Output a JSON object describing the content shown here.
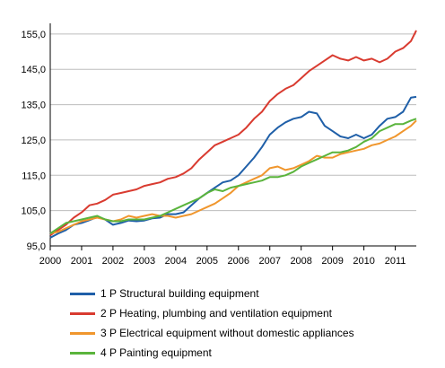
{
  "chart_data": {
    "type": "line",
    "title": "",
    "xlabel": "",
    "ylabel": "",
    "ylim": [
      95,
      157
    ],
    "y_ticks": [
      "155,0",
      "145,0",
      "135,0",
      "125,0",
      "115,0",
      "105,0",
      "95,0"
    ],
    "y_tick_values": [
      155,
      145,
      135,
      125,
      115,
      105,
      95
    ],
    "xlim": [
      2000.0,
      2011.67
    ],
    "x_ticks": [
      "2000",
      "2001",
      "2002",
      "2003",
      "2004",
      "2005",
      "2006",
      "2007",
      "2008",
      "2009",
      "2010",
      "2011"
    ],
    "x_tick_values": [
      2000,
      2001,
      2002,
      2003,
      2004,
      2005,
      2006,
      2007,
      2008,
      2009,
      2010,
      2011
    ],
    "grid": "horizontal",
    "legend_position": "bottom",
    "series": [
      {
        "name": "1 P Structural building equipment",
        "color": "#1f5fa8",
        "points": [
          [
            2000.0,
            97.3
          ],
          [
            2000.25,
            98.5
          ],
          [
            2000.5,
            99.5
          ],
          [
            2000.75,
            101.0
          ],
          [
            2001.0,
            101.5
          ],
          [
            2001.25,
            102.3
          ],
          [
            2001.5,
            103.2
          ],
          [
            2001.75,
            102.5
          ],
          [
            2002.0,
            101.0
          ],
          [
            2002.25,
            101.5
          ],
          [
            2002.5,
            102.2
          ],
          [
            2002.75,
            102.0
          ],
          [
            2003.0,
            102.2
          ],
          [
            2003.25,
            102.8
          ],
          [
            2003.5,
            103.0
          ],
          [
            2003.75,
            104.0
          ],
          [
            2004.0,
            104.0
          ],
          [
            2004.25,
            104.5
          ],
          [
            2004.5,
            106.5
          ],
          [
            2004.75,
            108.5
          ],
          [
            2005.0,
            110.0
          ],
          [
            2005.25,
            111.5
          ],
          [
            2005.5,
            113.0
          ],
          [
            2005.75,
            113.5
          ],
          [
            2006.0,
            115.0
          ],
          [
            2006.25,
            117.5
          ],
          [
            2006.5,
            120.0
          ],
          [
            2006.75,
            123.0
          ],
          [
            2007.0,
            126.5
          ],
          [
            2007.25,
            128.5
          ],
          [
            2007.5,
            130.0
          ],
          [
            2007.75,
            131.0
          ],
          [
            2008.0,
            131.5
          ],
          [
            2008.25,
            133.0
          ],
          [
            2008.5,
            132.5
          ],
          [
            2008.75,
            129.0
          ],
          [
            2009.0,
            127.5
          ],
          [
            2009.25,
            126.0
          ],
          [
            2009.5,
            125.5
          ],
          [
            2009.75,
            126.5
          ],
          [
            2010.0,
            125.5
          ],
          [
            2010.25,
            126.5
          ],
          [
            2010.5,
            129.0
          ],
          [
            2010.75,
            131.0
          ],
          [
            2011.0,
            131.5
          ],
          [
            2011.25,
            133.0
          ],
          [
            2011.5,
            137.0
          ],
          [
            2011.67,
            137.2
          ]
        ]
      },
      {
        "name": "2 P Heating, plumbing and ventilation equipment",
        "color": "#d93b30",
        "points": [
          [
            2000.0,
            98.0
          ],
          [
            2000.25,
            99.5
          ],
          [
            2000.5,
            101.0
          ],
          [
            2000.75,
            103.0
          ],
          [
            2001.0,
            104.5
          ],
          [
            2001.25,
            106.5
          ],
          [
            2001.5,
            107.0
          ],
          [
            2001.75,
            108.0
          ],
          [
            2002.0,
            109.5
          ],
          [
            2002.25,
            110.0
          ],
          [
            2002.5,
            110.5
          ],
          [
            2002.75,
            111.0
          ],
          [
            2003.0,
            112.0
          ],
          [
            2003.25,
            112.5
          ],
          [
            2003.5,
            113.0
          ],
          [
            2003.75,
            114.0
          ],
          [
            2004.0,
            114.5
          ],
          [
            2004.25,
            115.5
          ],
          [
            2004.5,
            117.0
          ],
          [
            2004.75,
            119.5
          ],
          [
            2005.0,
            121.5
          ],
          [
            2005.25,
            123.5
          ],
          [
            2005.5,
            124.5
          ],
          [
            2005.75,
            125.5
          ],
          [
            2006.0,
            126.5
          ],
          [
            2006.25,
            128.5
          ],
          [
            2006.5,
            131.0
          ],
          [
            2006.75,
            133.0
          ],
          [
            2007.0,
            136.0
          ],
          [
            2007.25,
            138.0
          ],
          [
            2007.5,
            139.5
          ],
          [
            2007.75,
            140.5
          ],
          [
            2008.0,
            142.5
          ],
          [
            2008.25,
            144.5
          ],
          [
            2008.5,
            146.0
          ],
          [
            2008.75,
            147.5
          ],
          [
            2009.0,
            149.0
          ],
          [
            2009.25,
            148.0
          ],
          [
            2009.5,
            147.5
          ],
          [
            2009.75,
            148.5
          ],
          [
            2010.0,
            147.5
          ],
          [
            2010.25,
            148.0
          ],
          [
            2010.5,
            147.0
          ],
          [
            2010.75,
            148.0
          ],
          [
            2011.0,
            150.0
          ],
          [
            2011.25,
            151.0
          ],
          [
            2011.5,
            153.0
          ],
          [
            2011.67,
            156.0
          ]
        ]
      },
      {
        "name": "3 P Electrical equipment without domestic appliances",
        "color": "#f0962d",
        "points": [
          [
            2000.0,
            98.5
          ],
          [
            2000.25,
            99.0
          ],
          [
            2000.5,
            100.0
          ],
          [
            2000.75,
            101.0
          ],
          [
            2001.0,
            102.0
          ],
          [
            2001.25,
            102.5
          ],
          [
            2001.5,
            103.0
          ],
          [
            2001.75,
            102.5
          ],
          [
            2002.0,
            102.0
          ],
          [
            2002.25,
            102.5
          ],
          [
            2002.5,
            103.5
          ],
          [
            2002.75,
            103.0
          ],
          [
            2003.0,
            103.5
          ],
          [
            2003.25,
            104.0
          ],
          [
            2003.5,
            103.5
          ],
          [
            2003.75,
            103.5
          ],
          [
            2004.0,
            103.0
          ],
          [
            2004.25,
            103.5
          ],
          [
            2004.5,
            104.0
          ],
          [
            2004.75,
            105.0
          ],
          [
            2005.0,
            106.0
          ],
          [
            2005.25,
            107.0
          ],
          [
            2005.5,
            108.5
          ],
          [
            2005.75,
            110.0
          ],
          [
            2006.0,
            112.0
          ],
          [
            2006.25,
            113.0
          ],
          [
            2006.5,
            114.0
          ],
          [
            2006.75,
            115.0
          ],
          [
            2007.0,
            117.0
          ],
          [
            2007.25,
            117.5
          ],
          [
            2007.5,
            116.5
          ],
          [
            2007.75,
            117.0
          ],
          [
            2008.0,
            118.0
          ],
          [
            2008.25,
            119.0
          ],
          [
            2008.5,
            120.5
          ],
          [
            2008.75,
            120.0
          ],
          [
            2009.0,
            120.0
          ],
          [
            2009.25,
            121.0
          ],
          [
            2009.5,
            121.5
          ],
          [
            2009.75,
            122.0
          ],
          [
            2010.0,
            122.5
          ],
          [
            2010.25,
            123.5
          ],
          [
            2010.5,
            124.0
          ],
          [
            2010.75,
            125.0
          ],
          [
            2011.0,
            126.0
          ],
          [
            2011.25,
            127.5
          ],
          [
            2011.5,
            129.0
          ],
          [
            2011.67,
            130.5
          ]
        ]
      },
      {
        "name": "4 P Painting equipment",
        "color": "#5ab43c",
        "points": [
          [
            2000.0,
            98.5
          ],
          [
            2000.25,
            100.0
          ],
          [
            2000.5,
            101.5
          ],
          [
            2000.75,
            102.0
          ],
          [
            2001.0,
            102.5
          ],
          [
            2001.25,
            103.0
          ],
          [
            2001.5,
            103.5
          ],
          [
            2001.75,
            102.5
          ],
          [
            2002.0,
            102.0
          ],
          [
            2002.25,
            102.0
          ],
          [
            2002.5,
            102.5
          ],
          [
            2002.75,
            102.5
          ],
          [
            2003.0,
            102.5
          ],
          [
            2003.25,
            103.0
          ],
          [
            2003.5,
            103.5
          ],
          [
            2003.75,
            104.5
          ],
          [
            2004.0,
            105.5
          ],
          [
            2004.25,
            106.5
          ],
          [
            2004.5,
            107.5
          ],
          [
            2004.75,
            108.5
          ],
          [
            2005.0,
            110.0
          ],
          [
            2005.25,
            111.0
          ],
          [
            2005.5,
            110.5
          ],
          [
            2005.75,
            111.5
          ],
          [
            2006.0,
            112.0
          ],
          [
            2006.25,
            112.5
          ],
          [
            2006.5,
            113.0
          ],
          [
            2006.75,
            113.5
          ],
          [
            2007.0,
            114.5
          ],
          [
            2007.25,
            114.5
          ],
          [
            2007.5,
            115.0
          ],
          [
            2007.75,
            116.0
          ],
          [
            2008.0,
            117.5
          ],
          [
            2008.25,
            118.5
          ],
          [
            2008.5,
            119.5
          ],
          [
            2008.75,
            120.5
          ],
          [
            2009.0,
            121.5
          ],
          [
            2009.25,
            121.5
          ],
          [
            2009.5,
            122.0
          ],
          [
            2009.75,
            123.0
          ],
          [
            2010.0,
            124.5
          ],
          [
            2010.25,
            125.5
          ],
          [
            2010.5,
            127.5
          ],
          [
            2010.75,
            128.5
          ],
          [
            2011.0,
            129.5
          ],
          [
            2011.25,
            129.5
          ],
          [
            2011.5,
            130.5
          ],
          [
            2011.67,
            131.0
          ]
        ]
      }
    ]
  }
}
